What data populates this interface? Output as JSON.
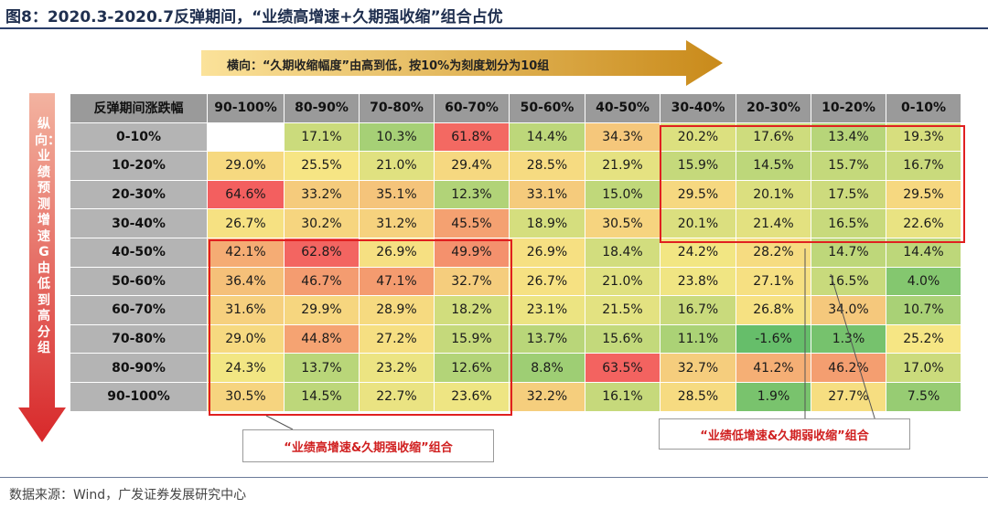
{
  "title": "图8：2020.3-2020.7反弹期间，“业绩高增速+久期强收缩”组合占优",
  "horizontal_arrow_label": "横向：“久期收缩幅度”由高到低，按10%为刻度划分为10组",
  "vertical_arrow_label": "纵向：业绩预测增速G由低到高分组",
  "colors": {
    "arrow_gold_light": "#fbe29a",
    "arrow_gold_dark": "#c98a1a",
    "arrow_red_light": "#f3b3a0",
    "arrow_red_dark": "#d8282a",
    "heat_low": "#66be6a",
    "heat_mid": "#f6e784",
    "heat_high": "#f35f5f",
    "highlight": "#e02020"
  },
  "chart_data": {
    "type": "heatmap",
    "corner_label": "反弹期间涨跌幅",
    "columns": [
      "90-100%",
      "80-90%",
      "70-80%",
      "60-70%",
      "50-60%",
      "40-50%",
      "30-40%",
      "20-30%",
      "10-20%",
      "0-10%"
    ],
    "rows": [
      "0-10%",
      "10-20%",
      "20-30%",
      "30-40%",
      "40-50%",
      "50-60%",
      "60-70%",
      "70-80%",
      "80-90%",
      "90-100%"
    ],
    "values": [
      [
        null,
        17.1,
        10.3,
        61.8,
        14.4,
        34.3,
        20.2,
        17.6,
        13.4,
        19.3
      ],
      [
        29.0,
        25.5,
        21.0,
        29.4,
        28.5,
        21.9,
        15.9,
        14.5,
        15.7,
        16.7
      ],
      [
        64.6,
        33.2,
        35.1,
        12.3,
        33.1,
        15.0,
        29.5,
        20.1,
        17.5,
        29.5
      ],
      [
        26.7,
        30.2,
        31.2,
        45.5,
        18.9,
        30.5,
        20.1,
        21.4,
        16.5,
        22.6
      ],
      [
        42.1,
        62.8,
        26.9,
        49.9,
        26.9,
        18.4,
        24.2,
        28.2,
        14.7,
        14.4
      ],
      [
        36.4,
        46.7,
        47.1,
        32.7,
        26.7,
        21.0,
        23.8,
        27.1,
        16.5,
        4.0
      ],
      [
        31.6,
        29.9,
        28.9,
        18.2,
        23.1,
        21.5,
        16.7,
        26.8,
        34.0,
        10.7
      ],
      [
        29.0,
        44.8,
        27.2,
        15.9,
        13.7,
        15.6,
        11.1,
        -1.6,
        1.3,
        25.2
      ],
      [
        24.3,
        13.7,
        23.2,
        12.6,
        8.8,
        63.5,
        32.7,
        41.2,
        46.2,
        17.0
      ],
      [
        30.5,
        14.5,
        22.7,
        23.6,
        32.2,
        16.1,
        28.5,
        1.9,
        27.7,
        7.5
      ]
    ],
    "unit": "%",
    "highlights": [
      {
        "label": "“业绩高增速&久期强收缩”组合",
        "rows": [
          "40-50%",
          "90-100%"
        ],
        "columns": [
          "90-100%",
          "60-70%"
        ]
      },
      {
        "label": "“业绩低增速&久期弱收缩”组合",
        "rows": [
          "0-10%",
          "30-40%"
        ],
        "columns": [
          "30-40%",
          "0-10%"
        ]
      }
    ]
  },
  "footer": "数据来源：Wind，广发证券发展研究中心"
}
